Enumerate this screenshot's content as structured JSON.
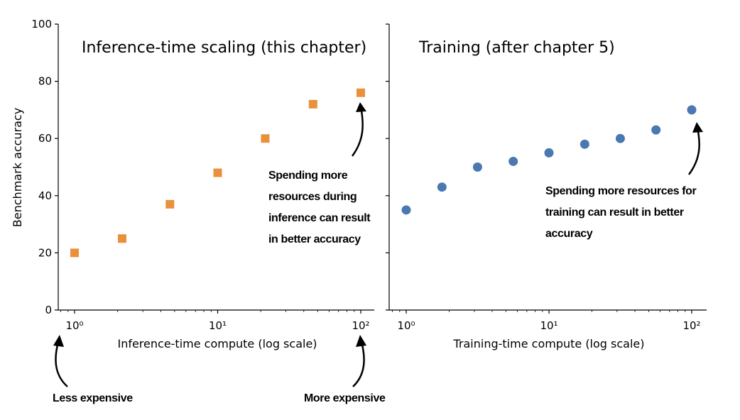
{
  "chart_data": [
    {
      "type": "scatter",
      "title": "Inference-time scaling (this chapter)",
      "xlabel": "Inference-time compute (log scale)",
      "ylabel": "Benchmark accuracy",
      "xscale": "log",
      "xlim": [
        0.8,
        130
      ],
      "ylim": [
        0,
        100
      ],
      "xticks": [
        1,
        10,
        100
      ],
      "xtick_labels": [
        "10⁰",
        "10¹",
        "10²"
      ],
      "yticks": [
        0,
        20,
        40,
        60,
        80,
        100
      ],
      "ytick_labels": [
        "0",
        "20",
        "40",
        "60",
        "80",
        "100"
      ],
      "marker": "square",
      "color": "#E8913A",
      "x": [
        1,
        2.15,
        4.64,
        10,
        21.5,
        46.4,
        100
      ],
      "y": [
        20,
        25,
        37,
        48,
        60,
        72,
        76
      ],
      "annotations": [
        {
          "lines": [
            "Spending more",
            "resources during",
            "inference can result",
            "in better accuracy"
          ]
        },
        {
          "lines": [
            "Less expensive"
          ]
        },
        {
          "lines": [
            "More expensive"
          ]
        }
      ],
      "grid": false
    },
    {
      "type": "scatter",
      "title": "Training (after chapter 5)",
      "xlabel": "Training-time compute (log scale)",
      "xscale": "log",
      "xlim": [
        0.8,
        130
      ],
      "ylim": [
        0,
        100
      ],
      "xticks": [
        1,
        10,
        100
      ],
      "xtick_labels": [
        "10⁰",
        "10¹",
        "10²"
      ],
      "yticks": [
        0,
        20,
        40,
        60,
        80,
        100
      ],
      "marker": "circle",
      "color": "#4A78B0",
      "x": [
        1,
        1.78,
        3.16,
        5.62,
        10,
        17.8,
        31.6,
        56.2,
        100
      ],
      "y": [
        35,
        43,
        50,
        52,
        55,
        58,
        60,
        63,
        70
      ],
      "annotations": [
        {
          "lines": [
            "Spending more resources for",
            "training can result in better",
            "accuracy"
          ]
        }
      ],
      "grid": false
    }
  ]
}
